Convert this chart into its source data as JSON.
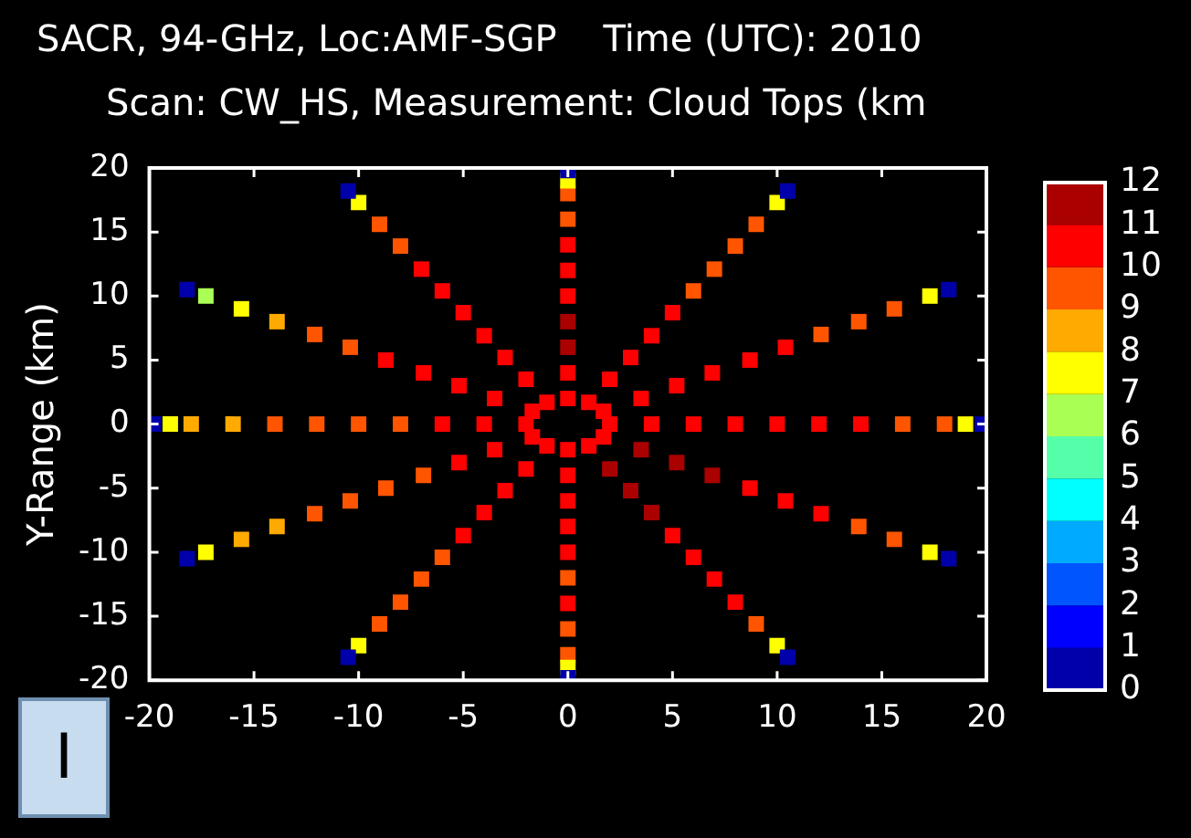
{
  "chart_data": {
    "type": "scatter",
    "title": "SACR, 94-GHz, Loc:AMF-SGP    Time (UTC): 2010",
    "subtitle": "Scan: CW_HS, Measurement: Cloud Tops (km",
    "ylabel": "Y-Range (km)",
    "annotations": [
      "I"
    ],
    "x": [
      2,
      4,
      6,
      8,
      10,
      12,
      14,
      16,
      18,
      19,
      19.8,
      1.7,
      3.5,
      5.2,
      6.9,
      8.7,
      10.4,
      12.1,
      13.9,
      15.6,
      17.3,
      18.2,
      1,
      2,
      3,
      4,
      5,
      6,
      7,
      8,
      9,
      10,
      10.5,
      0,
      0,
      0,
      0,
      0,
      0,
      0,
      0,
      0,
      0,
      0,
      -1,
      -2,
      -3,
      -4,
      -5,
      -6,
      -7,
      -8,
      -9,
      -10,
      -10.5,
      -1.7,
      -3.5,
      -5.2,
      -6.9,
      -8.7,
      -10.4,
      -12.1,
      -13.9,
      -15.6,
      -17.3,
      -18.2,
      -2,
      -4,
      -6,
      -8,
      -10,
      -12,
      -14,
      -16,
      -18,
      -19,
      -19.8,
      -1.7,
      -3.5,
      -5.2,
      -6.9,
      -8.7,
      -10.4,
      -12.1,
      -13.9,
      -15.6,
      -17.3,
      -18.2,
      -1,
      -2,
      -3,
      -4,
      -5,
      -6,
      -7,
      -8,
      -9,
      -10,
      -10.5,
      0,
      0,
      0,
      0,
      0,
      0,
      0,
      0,
      0,
      0,
      0,
      1,
      2,
      3,
      4,
      5,
      6,
      7,
      8,
      9,
      10,
      10.5,
      1.7,
      3.5,
      5.2,
      6.9,
      8.7,
      10.4,
      12.1,
      13.9,
      15.6,
      17.3,
      18.2
    ],
    "values": [
      0,
      0,
      0,
      0,
      0,
      0,
      0,
      0,
      0,
      0,
      0,
      1,
      2,
      3,
      4,
      5,
      6,
      7,
      8,
      9,
      10,
      10.5,
      1.7,
      3.5,
      5.2,
      6.9,
      8.7,
      10.4,
      12.1,
      13.9,
      15.6,
      17.3,
      18.2,
      2,
      4,
      6,
      8,
      10,
      12,
      14,
      16,
      18,
      19,
      19.8,
      1.7,
      3.5,
      5.2,
      6.9,
      8.7,
      10.4,
      12.1,
      13.9,
      15.6,
      17.3,
      18.2,
      1,
      2,
      3,
      4,
      5,
      6,
      7,
      8,
      9,
      10,
      10.5,
      0,
      0,
      0,
      0,
      0,
      0,
      0,
      0,
      0,
      0,
      0,
      -1,
      -2,
      -3,
      -4,
      -5,
      -6,
      -7,
      -8,
      -9,
      -10,
      -10.5,
      -1.7,
      -3.5,
      -5.2,
      -6.9,
      -8.7,
      -10.4,
      -12.1,
      -13.9,
      -15.6,
      -17.3,
      -18.2,
      -2,
      -4,
      -6,
      -8,
      -10,
      -12,
      -14,
      -16,
      -18,
      -19,
      -19.8,
      -1.7,
      -3.5,
      -5.2,
      -6.9,
      -8.7,
      -10.4,
      -12.1,
      -13.9,
      -15.6,
      -17.3,
      -18.2,
      -1,
      -2,
      -3,
      -4,
      -5,
      -6,
      -7,
      -8,
      -9,
      -10,
      -10.5
    ],
    "cvalues": [
      10.5,
      10.5,
      10.5,
      10.5,
      10.5,
      10.5,
      10.5,
      9.5,
      9.5,
      7.5,
      0.5,
      10.5,
      10.5,
      10.5,
      10.5,
      10.5,
      10.5,
      9.5,
      9.5,
      9.5,
      7.5,
      0.5,
      10.5,
      10.5,
      10.5,
      10.5,
      10.5,
      9.5,
      9.5,
      9.5,
      9.5,
      7.5,
      0.5,
      10.5,
      10.5,
      11.5,
      11.5,
      10.5,
      10.5,
      10.5,
      9.5,
      9.5,
      7.5,
      0.5,
      10.5,
      10.5,
      10.5,
      10.5,
      10.5,
      10.5,
      10.5,
      9.5,
      9.5,
      7.5,
      0.5,
      10.5,
      10.5,
      10.5,
      10.5,
      10.5,
      9.5,
      9.5,
      8.5,
      7.5,
      6.5,
      0.5,
      10.5,
      10.5,
      10.5,
      9.5,
      9.5,
      9.5,
      9.5,
      8.5,
      8.5,
      7.5,
      0.5,
      10.5,
      10.5,
      10.5,
      9.5,
      9.5,
      9.5,
      9.5,
      8.5,
      8.5,
      7.5,
      0.5,
      10.5,
      10.5,
      10.5,
      10.5,
      10.5,
      9.5,
      9.5,
      9.5,
      9.5,
      7.5,
      0.5,
      10.5,
      10.5,
      10.5,
      10.5,
      10.5,
      9.5,
      10.5,
      9.5,
      9.5,
      7.5,
      0.5,
      10.5,
      11.5,
      11.5,
      11.5,
      10.5,
      10.5,
      10.5,
      10.5,
      9.5,
      7.5,
      0.5,
      10.5,
      11.5,
      11.5,
      11.5,
      10.5,
      10.5,
      10.5,
      9.5,
      9.5,
      7.5,
      0.5
    ],
    "xlim": [
      -20,
      20
    ],
    "ylim": [
      -20,
      20
    ],
    "xticks": [
      -20,
      -15,
      -10,
      -5,
      0,
      5,
      10,
      15,
      20
    ],
    "yticks": [
      -20,
      -15,
      -10,
      -5,
      0,
      5,
      10,
      15,
      20
    ],
    "clim": [
      0,
      12
    ],
    "cticks": [
      0,
      1,
      2,
      3,
      4,
      5,
      6,
      7,
      8,
      9,
      10,
      11,
      12
    ],
    "grid": false,
    "legend": false,
    "marker": "square"
  }
}
